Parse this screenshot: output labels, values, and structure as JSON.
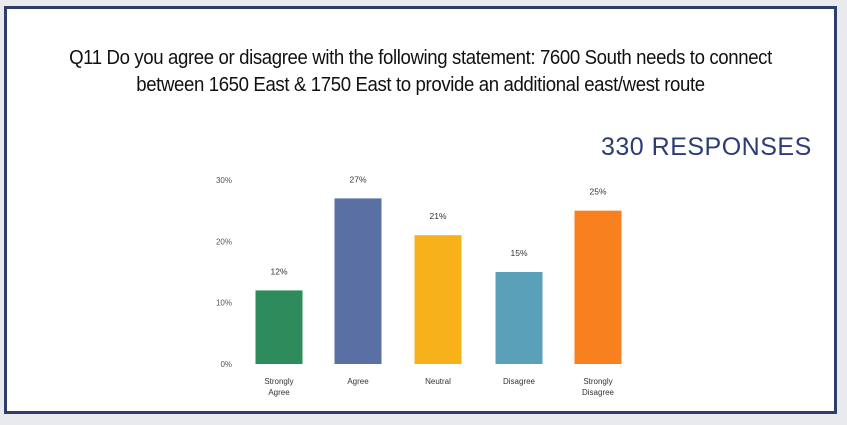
{
  "question": {
    "line1": "Q11 Do you agree or disagree with the following statement: 7600 South needs to connect",
    "line2": "between 1650 East & 1750 East to provide an additional east/west route"
  },
  "responses_label": "330 RESPONSES",
  "chart_data": {
    "type": "bar",
    "title": "",
    "xlabel": "",
    "ylabel": "",
    "ylim": [
      0,
      30
    ],
    "yticks": [
      "0%",
      "10%",
      "20%",
      "30%"
    ],
    "grid": false,
    "legend": "none",
    "categories": [
      [
        "Strongly",
        "Agree"
      ],
      [
        "Agree"
      ],
      [
        "Neutral"
      ],
      [
        "Disagree"
      ],
      [
        "Strongly",
        "Disagree"
      ]
    ],
    "values": [
      12,
      27,
      21,
      15,
      25
    ],
    "data_labels": [
      "12%",
      "27%",
      "21%",
      "15%",
      "25%"
    ],
    "colors": [
      "#2e8b5b",
      "#5a6fa3",
      "#f7b21b",
      "#5aa0b8",
      "#f9801e"
    ]
  }
}
